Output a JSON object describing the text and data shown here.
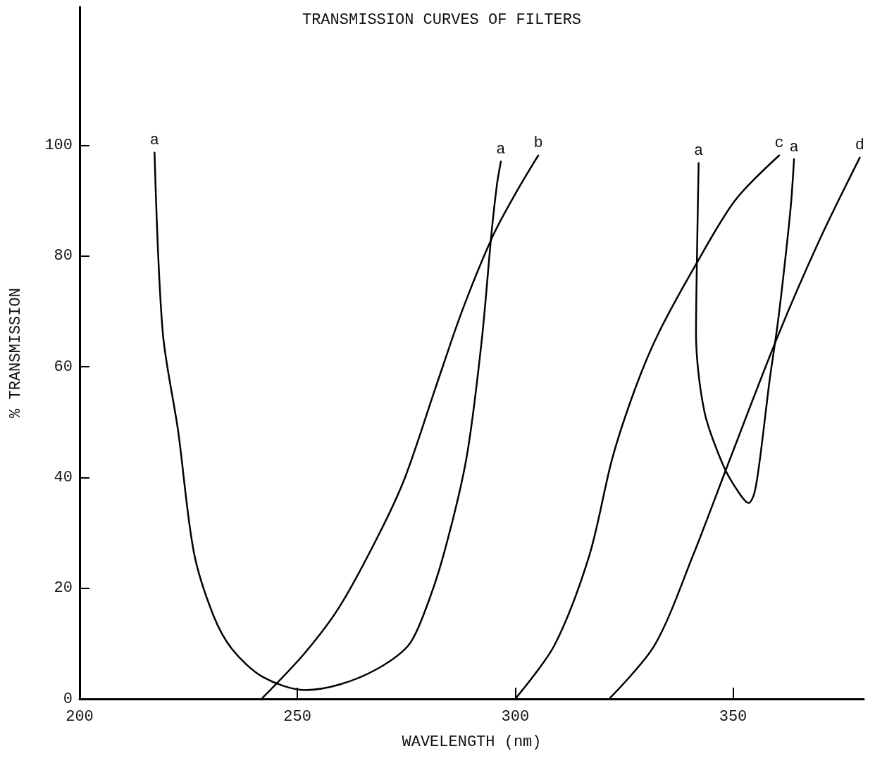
{
  "chart_data": {
    "type": "line",
    "title": "TRANSMISSION CURVES OF FILTERS",
    "xlabel": "WAVELENGTH (nm)",
    "ylabel": "% TRANSMISSION",
    "xlim": [
      200,
      380
    ],
    "xticks": [
      200,
      250,
      300,
      350
    ],
    "ylim": [
      0,
      125
    ],
    "yticks": [
      0,
      20,
      40,
      60,
      80,
      100
    ],
    "grid": false,
    "marker": "none",
    "line_style": "solid",
    "series": [
      {
        "color": "#000000",
        "x": [
          217.2,
          219.1,
          222.6,
          226.2,
          230.6,
          235.0,
          242.0,
          251.7,
          259.7,
          268.5,
          275.5,
          279.0,
          283.5,
          288.8,
          292.3,
          294.5,
          295.8,
          296.7
        ],
        "values": [
          98.7,
          66.1,
          48.5,
          26.6,
          15.3,
          9.0,
          4.0,
          1.6,
          2.6,
          5.5,
          9.7,
          15.3,
          25.9,
          43.5,
          64.7,
          83.7,
          92.9,
          97.1
        ]
      },
      {
        "color": "#000000",
        "x": [
          242.0,
          251.7,
          259.7,
          268.5,
          274.7,
          281.7,
          287.9,
          294.9,
          300.2,
          305.3
        ],
        "values": [
          0.2,
          8.3,
          16.7,
          29.4,
          40,
          56.2,
          70.3,
          83.7,
          91.5,
          98.2
        ]
      },
      {
        "color": "#000000",
        "x": [
          300.2,
          309.0,
          317.0,
          322.3,
          327.6,
          332.9,
          341.7,
          350.5,
          360.6
        ],
        "values": [
          0.2,
          9.7,
          25.9,
          43.5,
          56.2,
          66.1,
          78.8,
          90.1,
          98.2
        ]
      },
      {
        "color": "#000000",
        "x": [
          321.8,
          332.0,
          340.8,
          348.7,
          360.2,
          369.9,
          379.1
        ],
        "values": [
          0.2,
          9.7,
          25.9,
          42.1,
          65.4,
          83.0,
          97.8
        ]
      },
      {
        "color": "#000000",
        "x": [
          342.1,
          341.7,
          341.5,
          343.4,
          347.8,
          351.4,
          353.6,
          354.9,
          356.2,
          358.4,
          360.2,
          361.9,
          363.3,
          364.0
        ],
        "values": [
          96.8,
          78.8,
          66.1,
          52.0,
          42.1,
          37.2,
          35.4,
          37.2,
          43.5,
          57.6,
          67.5,
          78.8,
          89.4,
          97.5
        ]
      }
    ],
    "annotations": [
      {
        "text": "a",
        "x": 217.2,
        "y": 98.7
      },
      {
        "text": "a",
        "x": 296.7,
        "y": 97.1
      },
      {
        "text": "b",
        "x": 305.3,
        "y": 98.2
      },
      {
        "text": "a",
        "x": 342.1,
        "y": 96.8
      },
      {
        "text": "c",
        "x": 360.6,
        "y": 98.2
      },
      {
        "text": "a",
        "x": 364.0,
        "y": 97.5
      },
      {
        "text": "d",
        "x": 379.1,
        "y": 97.8
      }
    ]
  }
}
